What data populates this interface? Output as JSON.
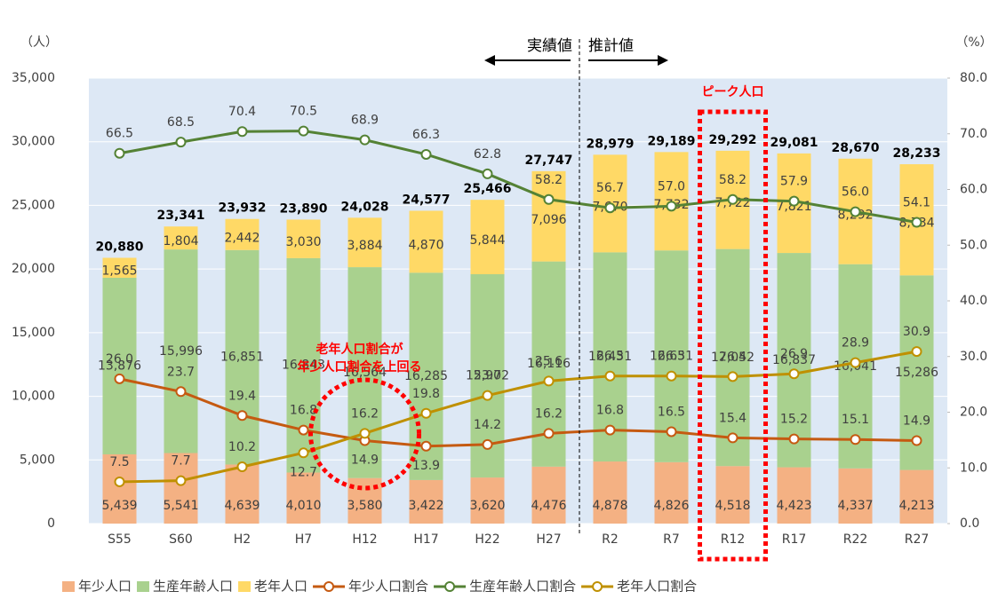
{
  "chart_data": {
    "type": "bar_line",
    "y_axis_label": "（人）",
    "y2_axis_label": "（%）",
    "categories": [
      "S55",
      "S60",
      "H2",
      "H7",
      "H12",
      "H17",
      "H22",
      "H27",
      "R2",
      "R7",
      "R12",
      "R17",
      "R22",
      "R27"
    ],
    "series": [
      {
        "name": "年少人口",
        "type": "bar",
        "color": "#f4b183",
        "values": [
          5439,
          5541,
          4639,
          4010,
          3580,
          3422,
          3620,
          4476,
          4878,
          4826,
          4518,
          4423,
          4337,
          4213
        ],
        "value_labels": [
          "5,439",
          "5,541",
          "4,639",
          "4,010",
          "3,580",
          "3,422",
          "3,620",
          "4,476",
          "4,878",
          "4,826",
          "4,518",
          "4,423",
          "4,337",
          "4,213"
        ]
      },
      {
        "name": "生産年齢人口",
        "type": "bar",
        "color": "#a9d18e",
        "values": [
          13876,
          15996,
          16851,
          16843,
          16564,
          16285,
          15972,
          16116,
          16431,
          16631,
          17052,
          16837,
          16041,
          15286
        ],
        "value_labels": [
          "13,876",
          "15,996",
          "16,851",
          "16,843",
          "16,564",
          "16,285",
          "15,972",
          "16,116",
          "16,431",
          "16,631",
          "17,052",
          "16,837",
          "16,041",
          "15,286"
        ]
      },
      {
        "name": "老年人口",
        "type": "bar",
        "color": "#ffd966",
        "values": [
          1565,
          1804,
          2442,
          3030,
          3884,
          4870,
          5844,
          7096,
          7670,
          7732,
          7722,
          7821,
          8292,
          8734
        ],
        "value_labels": [
          "1,565",
          "1,804",
          "2,442",
          "3,030",
          "3,884",
          "4,870",
          "5,844",
          "7,096",
          "7,670",
          "7,732",
          "7,722",
          "7,821",
          "8,292",
          "8,734"
        ]
      },
      {
        "name": "年少人口割合",
        "type": "line",
        "axis": "y2",
        "color": "#c55a11",
        "values": [
          26.0,
          23.7,
          19.4,
          16.8,
          14.9,
          13.9,
          14.2,
          16.2,
          16.8,
          16.5,
          15.4,
          15.2,
          15.1,
          14.9
        ],
        "value_labels": [
          "26.0",
          "23.7",
          "19.4",
          "16.8",
          "14.9",
          "13.9",
          "14.2",
          "16.2",
          "16.8",
          "16.5",
          "15.4",
          "15.2",
          "15.1",
          "14.9"
        ]
      },
      {
        "name": "生産年齢人口割合",
        "type": "line",
        "axis": "y2",
        "color": "#548235",
        "values": [
          66.5,
          68.5,
          70.4,
          70.5,
          68.9,
          66.3,
          62.8,
          58.2,
          56.7,
          57.0,
          58.2,
          57.9,
          56.0,
          54.1
        ],
        "value_labels": [
          "66.5",
          "68.5",
          "70.4",
          "70.5",
          "68.9",
          "66.3",
          "62.8",
          "58.2",
          "56.7",
          "57.0",
          "58.2",
          "57.9",
          "56.0",
          "54.1"
        ]
      },
      {
        "name": "老年人口割合",
        "type": "line",
        "axis": "y2",
        "color": "#bf9000",
        "values": [
          7.5,
          7.7,
          10.2,
          12.7,
          16.2,
          19.8,
          23.0,
          25.6,
          26.5,
          26.5,
          26.4,
          26.9,
          28.9,
          30.9
        ],
        "value_labels": [
          "7.5",
          "7.7",
          "10.2",
          "12.7",
          "16.2",
          "19.8",
          "23.0",
          "25.6",
          "26.5",
          "26.5",
          "26.4",
          "26.9",
          "28.9",
          "30.9"
        ]
      }
    ],
    "totals": [
      20880,
      23341,
      23932,
      23890,
      24028,
      24577,
      25466,
      27747,
      28979,
      29189,
      29292,
      29081,
      28670,
      28233
    ],
    "total_labels": [
      "20,880",
      "23,341",
      "23,932",
      "23,890",
      "24,028",
      "24,577",
      "25,466",
      "27,747",
      "28,979",
      "29,189",
      "29,292",
      "29,081",
      "28,670",
      "28,233"
    ],
    "ylim": [
      0,
      35000
    ],
    "yticks": [
      0,
      {
        "value": 5000,
        "label": "5,000"
      },
      {
        "value": 10000,
        "label": "10,000"
      },
      {
        "value": 15000,
        "label": "15,000"
      },
      {
        "value": 20000,
        "label": "20,000"
      },
      {
        "value": 25000,
        "label": "25,000"
      },
      {
        "value": 30000,
        "label": "30,000"
      },
      {
        "value": 35000,
        "label": "35,000"
      }
    ],
    "y2lim": [
      0,
      80
    ],
    "y2ticks": [
      {
        "value": 0,
        "label": "0.0"
      },
      {
        "value": 10,
        "label": "10.0"
      },
      {
        "value": 20,
        "label": "20.0"
      },
      {
        "value": 30,
        "label": "30.0"
      },
      {
        "value": 40,
        "label": "40.0"
      },
      {
        "value": 50,
        "label": "50.0"
      },
      {
        "value": 60,
        "label": "60.0"
      },
      {
        "value": 70,
        "label": "70.0"
      },
      {
        "value": 80,
        "label": "80.0"
      }
    ],
    "annotations": {
      "actual": "実績値",
      "estimate": "推計値",
      "peak": "ピーク人口",
      "crossover": [
        "老年人口割合が",
        "年少人口割合を上回る"
      ]
    },
    "legend": "bottom"
  }
}
